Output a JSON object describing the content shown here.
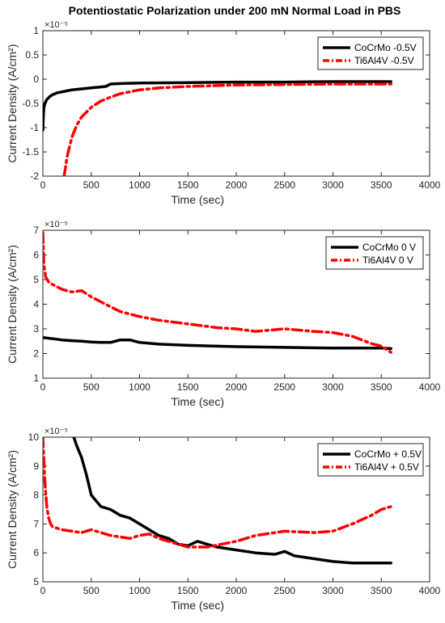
{
  "figure_title": "Potentiostatic Polarization under 200 mN Normal Load in PBS",
  "chart_data": [
    {
      "type": "line",
      "xlabel": "Time (sec)",
      "ylabel": "Current Density (A/cm²)",
      "y_exponent": "×10⁻⁵",
      "xlim": [
        0,
        4000
      ],
      "ylim": [
        -2,
        1
      ],
      "xticks": [
        0,
        500,
        1000,
        1500,
        2000,
        2500,
        3000,
        3500,
        4000
      ],
      "yticks": [
        -2,
        -1.5,
        -1,
        -0.5,
        0,
        0.5,
        1
      ],
      "ytick_labels": [
        "-2",
        "-1.5",
        "-1",
        "-0.5",
        "0",
        "0.5",
        "1"
      ],
      "grid": false,
      "legend": "top-right",
      "series": [
        {
          "name": "CoCrMo -0.5V",
          "color": "#000000",
          "style": "solid",
          "x": [
            0,
            5,
            10,
            20,
            40,
            70,
            100,
            150,
            200,
            300,
            400,
            500,
            600,
            650,
            680,
            700,
            800,
            1000,
            1500,
            2000,
            2500,
            3000,
            3500,
            3600
          ],
          "y": [
            -1.05,
            -0.75,
            -0.6,
            -0.5,
            -0.42,
            -0.36,
            -0.32,
            -0.28,
            -0.26,
            -0.22,
            -0.2,
            -0.18,
            -0.16,
            -0.15,
            -0.12,
            -0.1,
            -0.09,
            -0.08,
            -0.07,
            -0.06,
            -0.06,
            -0.05,
            -0.05,
            -0.05
          ]
        },
        {
          "name": "Ti6Al4V -0.5V",
          "color": "#ff0000",
          "style": "dashdot",
          "x": [
            220,
            250,
            300,
            350,
            400,
            500,
            600,
            700,
            800,
            1000,
            1200,
            1500,
            2000,
            2500,
            3000,
            3500,
            3600
          ],
          "y": [
            -2.0,
            -1.6,
            -1.2,
            -0.95,
            -0.78,
            -0.58,
            -0.45,
            -0.37,
            -0.3,
            -0.22,
            -0.18,
            -0.15,
            -0.12,
            -0.11,
            -0.1,
            -0.1,
            -0.1
          ]
        }
      ]
    },
    {
      "type": "line",
      "xlabel": "Time (sec)",
      "ylabel": "Current Density (A/cm²)",
      "y_exponent": "×10⁻⁵",
      "xlim": [
        0,
        4000
      ],
      "ylim": [
        1,
        7
      ],
      "xticks": [
        0,
        500,
        1000,
        1500,
        2000,
        2500,
        3000,
        3500,
        4000
      ],
      "yticks": [
        1,
        2,
        3,
        4,
        5,
        6,
        7
      ],
      "ytick_labels": [
        "1",
        "2",
        "3",
        "4",
        "5",
        "6",
        "7"
      ],
      "grid": false,
      "legend": "top-right",
      "series": [
        {
          "name": "CoCrMo 0 V",
          "color": "#000000",
          "style": "solid",
          "x": [
            0,
            100,
            200,
            300,
            400,
            500,
            600,
            700,
            800,
            900,
            1000,
            1200,
            1500,
            1800,
            2000,
            2500,
            3000,
            3500,
            3600
          ],
          "y": [
            2.65,
            2.6,
            2.55,
            2.52,
            2.5,
            2.47,
            2.45,
            2.45,
            2.55,
            2.55,
            2.45,
            2.38,
            2.33,
            2.3,
            2.28,
            2.25,
            2.22,
            2.22,
            2.2
          ]
        },
        {
          "name": "Ti6Al4V 0 V",
          "color": "#ff0000",
          "style": "dashdot",
          "x": [
            0,
            10,
            30,
            60,
            100,
            200,
            300,
            400,
            500,
            600,
            700,
            800,
            900,
            1000,
            1200,
            1500,
            1800,
            2000,
            2200,
            2500,
            2800,
            3000,
            3200,
            3400,
            3500,
            3600
          ],
          "y": [
            6.9,
            5.6,
            5.1,
            4.9,
            4.8,
            4.6,
            4.5,
            4.55,
            4.3,
            4.1,
            3.9,
            3.7,
            3.6,
            3.5,
            3.35,
            3.2,
            3.05,
            3.0,
            2.9,
            3.0,
            2.9,
            2.85,
            2.7,
            2.4,
            2.3,
            2.05
          ]
        }
      ]
    },
    {
      "type": "line",
      "xlabel": "Time (sec)",
      "ylabel": "Current Density (A/cm²)",
      "y_exponent": "×10⁻⁵",
      "xlim": [
        0,
        4000
      ],
      "ylim": [
        5,
        10
      ],
      "xticks": [
        0,
        500,
        1000,
        1500,
        2000,
        2500,
        3000,
        3500,
        4000
      ],
      "yticks": [
        5,
        6,
        7,
        8,
        9,
        10
      ],
      "ytick_labels": [
        "5",
        "6",
        "7",
        "8",
        "9",
        "10"
      ],
      "grid": false,
      "legend": "top-right",
      "series": [
        {
          "name": "CoCrMo + 0.5V",
          "color": "#000000",
          "style": "solid",
          "x": [
            320,
            350,
            400,
            450,
            500,
            550,
            600,
            700,
            800,
            900,
            1000,
            1100,
            1200,
            1300,
            1400,
            1500,
            1600,
            1700,
            1800,
            2000,
            2200,
            2400,
            2500,
            2600,
            2800,
            3000,
            3200,
            3400,
            3600
          ],
          "y": [
            10.0,
            9.7,
            9.3,
            8.7,
            8.0,
            7.8,
            7.6,
            7.5,
            7.3,
            7.2,
            7.0,
            6.8,
            6.6,
            6.5,
            6.3,
            6.25,
            6.4,
            6.3,
            6.2,
            6.1,
            6.0,
            5.95,
            6.05,
            5.9,
            5.8,
            5.7,
            5.65,
            5.65,
            5.65
          ]
        },
        {
          "name": "Ti6Al4V + 0.5V",
          "color": "#ff0000",
          "style": "dashdot",
          "x": [
            0,
            20,
            40,
            60,
            80,
            100,
            150,
            200,
            300,
            400,
            500,
            600,
            700,
            800,
            900,
            1000,
            1100,
            1200,
            1300,
            1500,
            1700,
            2000,
            2200,
            2500,
            2800,
            3000,
            3200,
            3400,
            3500,
            3600
          ],
          "y": [
            10.0,
            8.5,
            7.6,
            7.2,
            7.0,
            6.9,
            6.85,
            6.8,
            6.75,
            6.7,
            6.8,
            6.7,
            6.6,
            6.55,
            6.5,
            6.6,
            6.65,
            6.5,
            6.4,
            6.2,
            6.2,
            6.4,
            6.6,
            6.75,
            6.7,
            6.75,
            7.0,
            7.3,
            7.5,
            7.6
          ]
        }
      ]
    }
  ]
}
